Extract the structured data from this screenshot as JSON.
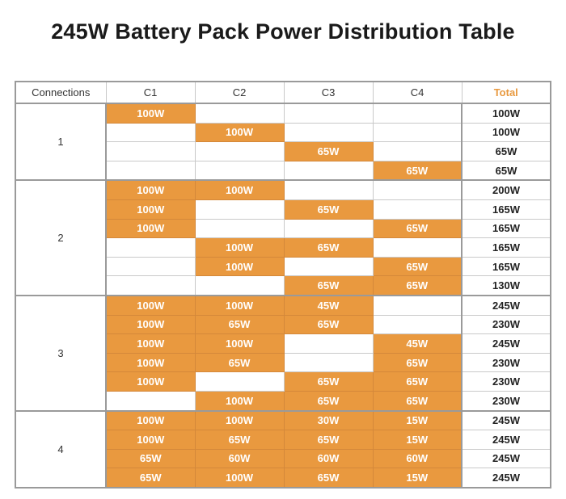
{
  "title": "245W Battery Pack Power Distribution Table",
  "headers": [
    "Connections",
    "C1",
    "C2",
    "C3",
    "C4",
    "Total"
  ],
  "accent_color": "#e9993f",
  "groups": [
    {
      "connections": "1",
      "rows": [
        [
          "100W",
          "",
          "",
          "",
          "100W"
        ],
        [
          "",
          "100W",
          "",
          "",
          "100W"
        ],
        [
          "",
          "",
          "65W",
          "",
          "65W"
        ],
        [
          "",
          "",
          "",
          "65W",
          "65W"
        ]
      ]
    },
    {
      "connections": "2",
      "rows": [
        [
          "100W",
          "100W",
          "",
          "",
          "200W"
        ],
        [
          "100W",
          "",
          "65W",
          "",
          "165W"
        ],
        [
          "100W",
          "",
          "",
          "65W",
          "165W"
        ],
        [
          "",
          "100W",
          "65W",
          "",
          "165W"
        ],
        [
          "",
          "100W",
          "",
          "65W",
          "165W"
        ],
        [
          "",
          "",
          "65W",
          "65W",
          "130W"
        ]
      ]
    },
    {
      "connections": "3",
      "rows": [
        [
          "100W",
          "100W",
          "45W",
          "",
          "245W"
        ],
        [
          "100W",
          "65W",
          "65W",
          "",
          "230W"
        ],
        [
          "100W",
          "100W",
          "",
          "45W",
          "245W"
        ],
        [
          "100W",
          "65W",
          "",
          "65W",
          "230W"
        ],
        [
          "100W",
          "",
          "65W",
          "65W",
          "230W"
        ],
        [
          "",
          "100W",
          "65W",
          "65W",
          "230W"
        ]
      ]
    },
    {
      "connections": "4",
      "rows": [
        [
          "100W",
          "100W",
          "30W",
          "15W",
          "245W"
        ],
        [
          "100W",
          "65W",
          "65W",
          "15W",
          "245W"
        ],
        [
          "65W",
          "60W",
          "60W",
          "60W",
          "245W"
        ],
        [
          "65W",
          "100W",
          "65W",
          "15W",
          "245W"
        ]
      ]
    }
  ]
}
